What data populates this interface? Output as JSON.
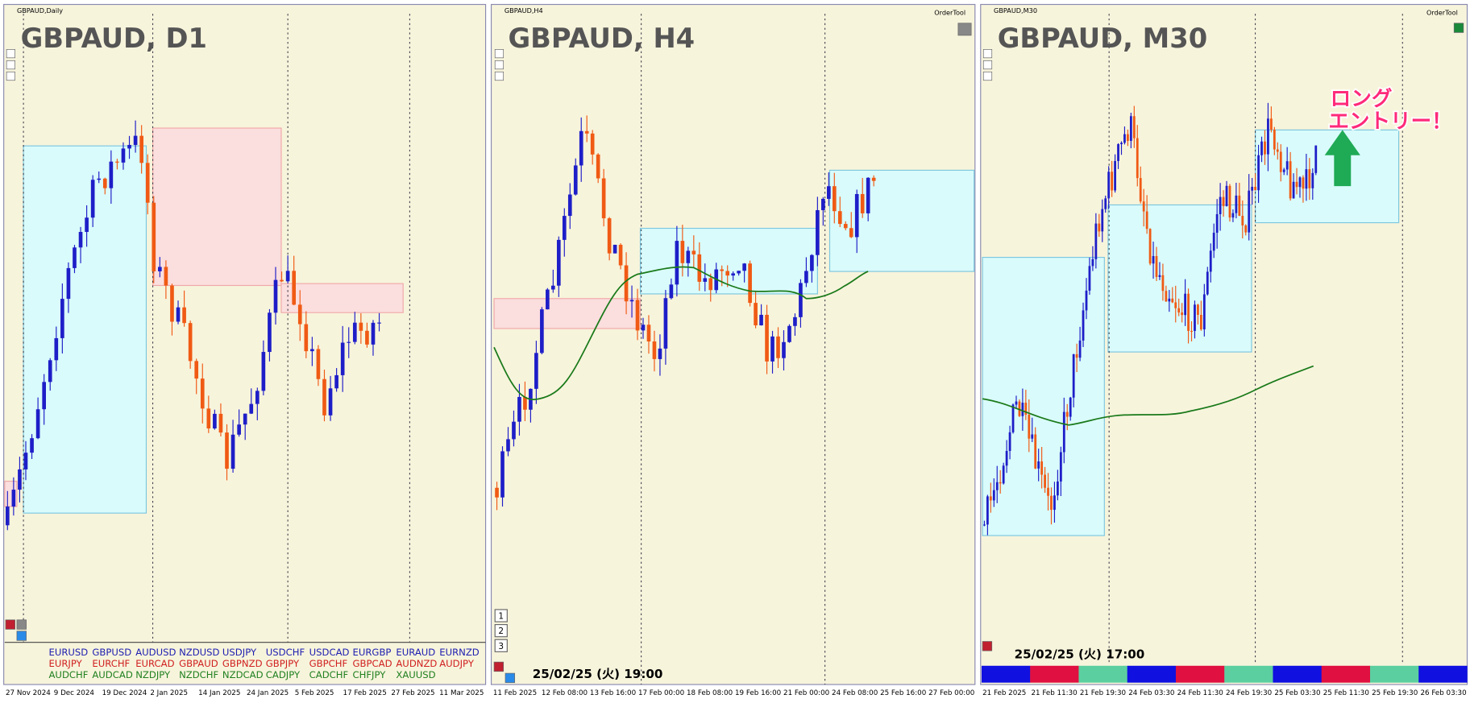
{
  "panels": [
    {
      "header": "GBPAUD,Daily",
      "title": "GBPAUD, D1",
      "dates": [
        "27 Nov 2024",
        "9 Dec 2024",
        "19 Dec 2024",
        "2 Jan 2025",
        "14 Jan 2025",
        "24 Jan 2025",
        "5 Feb 2025",
        "17 Feb 2025",
        "27 Feb 2025",
        "11 Mar 2025"
      ],
      "symbols": [
        [
          "EURUSD",
          "GBPUSD",
          "AUDUSD",
          "NZDUSD",
          "USDJPY",
          "USDCHF",
          "USDCAD",
          "EURGBP",
          "EURAUD",
          "EURNZD"
        ],
        [
          "EURJPY",
          "EURCHF",
          "EURCAD",
          "GBPAUD",
          "GBPNZD",
          "GBPJPY",
          "GBPCHF",
          "GBPCAD",
          "AUDNZD",
          "AUDJPY"
        ],
        [
          "AUDCHF",
          "AUDCAD",
          "NZDJPY",
          "NZDCHF",
          "NZDCAD",
          "CADJPY",
          "CADCHF",
          "CHFJPY",
          "XAUUSD"
        ]
      ]
    },
    {
      "header": "GBPAUD,H4",
      "tool": "OrderTool",
      "title": "GBPAUD, H4",
      "timestamp": "25/02/25 (火) 19:00",
      "buttons": [
        "1",
        "2",
        "3"
      ],
      "dates": [
        "11 Feb 2025",
        "12 Feb 08:00",
        "13 Feb 16:00",
        "17 Feb 00:00",
        "18 Feb 08:00",
        "19 Feb 16:00",
        "21 Feb 00:00",
        "24 Feb 08:00",
        "25 Feb 16:00",
        "27 Feb 00:00"
      ]
    },
    {
      "header": "GBPAUD,M30",
      "tool": "OrderTool",
      "title": "GBPAUD, M30",
      "timestamp": "25/02/25 (火) 17:00",
      "annotation": [
        "ロング",
        "エントリー！"
      ],
      "dates": [
        "21 Feb 2025",
        "21 Feb 11:30",
        "21 Feb 19:30",
        "24 Feb 03:30",
        "24 Feb 11:30",
        "24 Feb 19:30",
        "25 Feb 03:30",
        "25 Feb 11:30",
        "25 Feb 19:30",
        "26 Feb 03:30"
      ]
    }
  ]
}
